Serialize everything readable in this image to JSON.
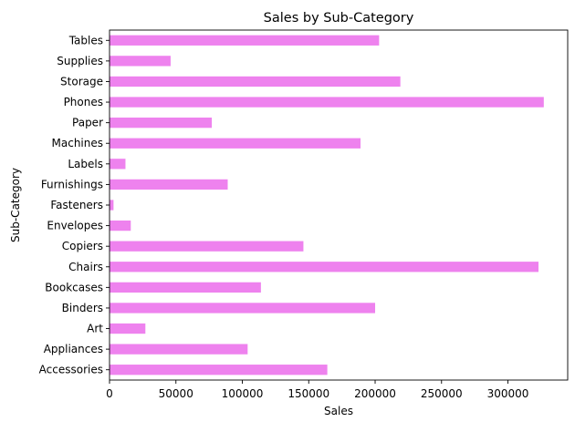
{
  "chart_data": {
    "type": "bar",
    "orientation": "horizontal",
    "title": "Sales by Sub-Category",
    "xlabel": "Sales",
    "ylabel": "Sub-Category",
    "categories": [
      "Accessories",
      "Appliances",
      "Art",
      "Binders",
      "Bookcases",
      "Chairs",
      "Copiers",
      "Envelopes",
      "Fasteners",
      "Furnishings",
      "Labels",
      "Machines",
      "Paper",
      "Phones",
      "Storage",
      "Supplies",
      "Tables"
    ],
    "values": [
      164000,
      104000,
      27000,
      200000,
      114000,
      323000,
      146000,
      16000,
      3000,
      89000,
      12000,
      189000,
      77000,
      327000,
      219000,
      46000,
      203000
    ],
    "xlim": [
      0,
      345000
    ],
    "x_ticks": [
      0,
      50000,
      100000,
      150000,
      200000,
      250000,
      300000
    ],
    "x_tick_labels": [
      "0",
      "50000",
      "100000",
      "150000",
      "200000",
      "250000",
      "300000"
    ],
    "grid": false,
    "legend": "none",
    "bar_color": "#ee82ee",
    "axis_color": "#000000"
  }
}
